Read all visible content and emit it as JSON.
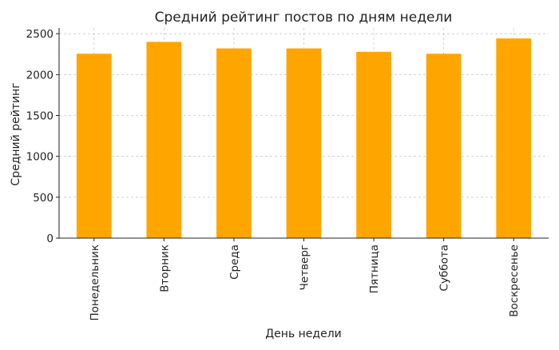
{
  "chart_data": {
    "type": "bar",
    "title": "Средний рейтинг постов по дням недели",
    "xlabel": "День недели",
    "ylabel": "Средний рейтинг",
    "categories": [
      "Понедельник",
      "Вторник",
      "Среда",
      "Четверг",
      "Пятница",
      "Суббота",
      "Воскресенье"
    ],
    "values": [
      2255,
      2400,
      2320,
      2320,
      2278,
      2255,
      2442
    ],
    "ylim": [
      0,
      2570
    ],
    "yticks": [
      0,
      500,
      1000,
      1500,
      2000,
      2500
    ],
    "grid": true,
    "bar_color": "#FFA500"
  }
}
